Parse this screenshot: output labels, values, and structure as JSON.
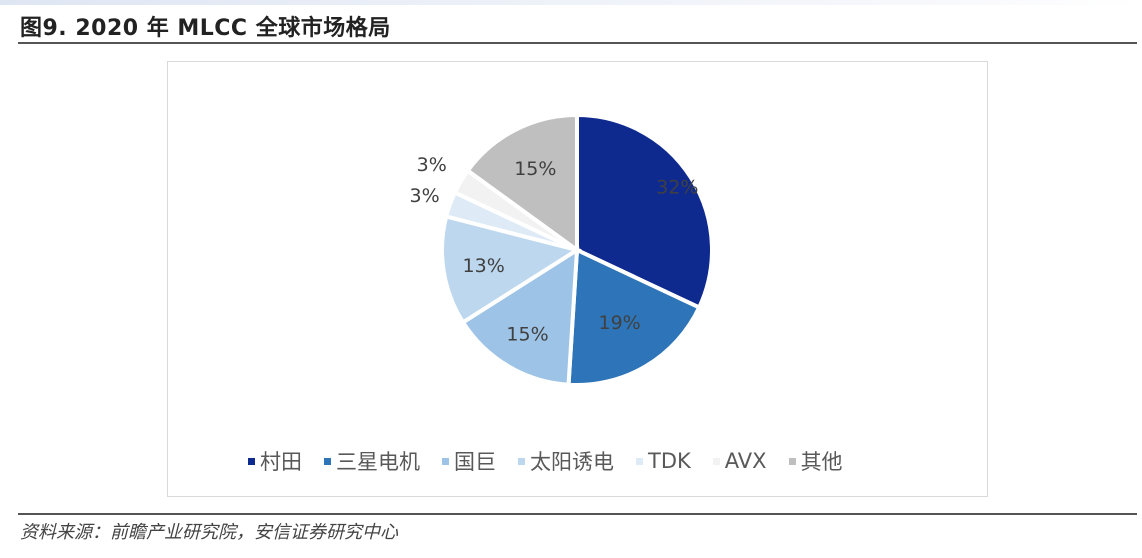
{
  "header": {
    "title": "图9. 2020 年 MLCC 全球市场格局"
  },
  "footer": {
    "source": "资料来源：前瞻产业研究院，安信证券研究中心"
  },
  "chart_data": {
    "type": "pie",
    "title": "2020 年 MLCC 全球市场格局",
    "start_angle": "12 o'clock",
    "direction": "clockwise",
    "legend_position": "bottom",
    "categories": [
      "村田",
      "三星电机",
      "国巨",
      "太阳诱电",
      "TDK",
      "AVX",
      "其他"
    ],
    "values": [
      32,
      19,
      15,
      13,
      3,
      3,
      15
    ],
    "labels": [
      "32%",
      "19%",
      "15%",
      "13%",
      "3%",
      "3%",
      "15%"
    ],
    "colors": [
      "#0f2a8f",
      "#2e74b8",
      "#9dc3e6",
      "#bdd7ee",
      "#deebf7",
      "#f2f2f2",
      "#bfbfbf"
    ],
    "unit": "%"
  },
  "legend": [
    {
      "label": "村田",
      "color": "#0f2a8f"
    },
    {
      "label": "三星电机",
      "color": "#2e74b8"
    },
    {
      "label": "国巨",
      "color": "#9dc3e6"
    },
    {
      "label": "太阳诱电",
      "color": "#bdd7ee"
    },
    {
      "label": "TDK",
      "color": "#deebf7"
    },
    {
      "label": "AVX",
      "color": "#f2f2f2"
    },
    {
      "label": "其他",
      "color": "#bfbfbf"
    }
  ]
}
